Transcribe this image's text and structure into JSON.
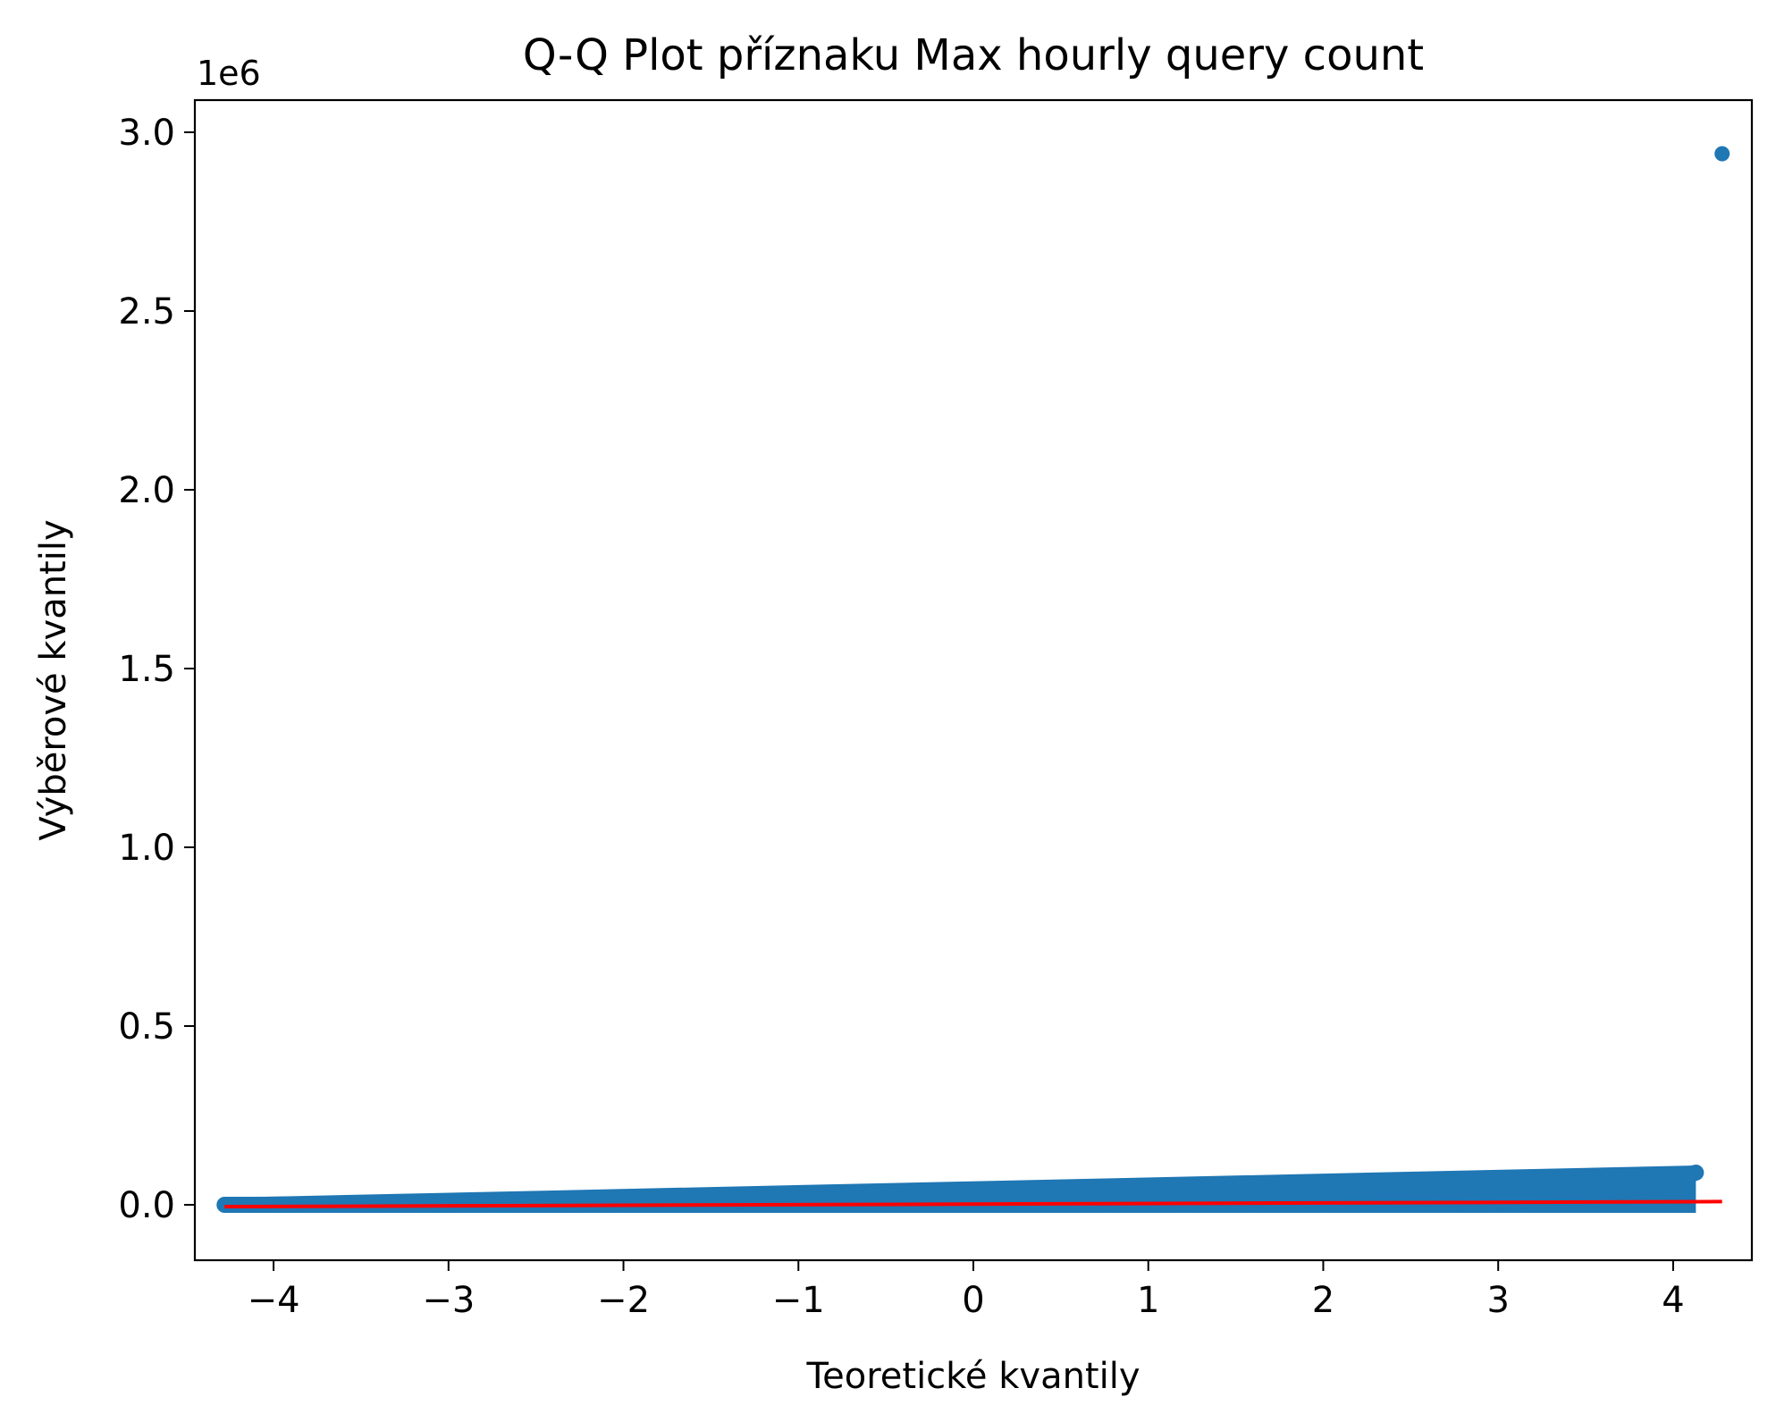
{
  "chart_data": {
    "type": "scatter",
    "title": "Q-Q Plot příznaku Max hourly query count",
    "xlabel": "Teoretické kvantily",
    "ylabel": "Výběrové kvantily",
    "y_offset_text": "1e6",
    "xlim": [
      -4.45,
      4.45
    ],
    "ylim": [
      -155000,
      3090000
    ],
    "x_ticks": [
      -4,
      -3,
      -2,
      -1,
      0,
      1,
      2,
      3,
      4
    ],
    "x_tick_labels": [
      "−4",
      "−3",
      "−2",
      "−1",
      "0",
      "1",
      "2",
      "3",
      "4"
    ],
    "y_ticks": [
      0,
      500000,
      1000000,
      1500000,
      2000000,
      2500000,
      3000000
    ],
    "y_tick_labels": [
      "0.0",
      "0.5",
      "1.0",
      "1.5",
      "2.0",
      "2.5",
      "3.0"
    ],
    "grid": false,
    "series": [
      {
        "type": "scatter",
        "color": "#1f77b4",
        "x": [
          -4.28,
          -4.11,
          -4.03,
          -3.96,
          -3.9,
          -3.84,
          -3.75,
          -3.6,
          -3.4,
          -3.1,
          -2.7,
          -2.2,
          -1.7,
          -1.2,
          -0.7,
          -0.2,
          0.3,
          0.8,
          1.2,
          1.6,
          2.0,
          2.4,
          2.8,
          3.0,
          3.2,
          3.35,
          3.5,
          3.6,
          3.68,
          3.75,
          3.8,
          3.85,
          3.9,
          3.95,
          4.03,
          4.13,
          4.28
        ],
        "y": [
          0,
          0,
          300,
          600,
          800,
          900,
          1000,
          1200,
          1400,
          1600,
          1800,
          2000,
          2200,
          2400,
          2600,
          2800,
          3000,
          3300,
          3600,
          4000,
          4500,
          5500,
          7000,
          9000,
          13000,
          18000,
          24000,
          30000,
          36000,
          44000,
          52000,
          56000,
          58000,
          66000,
          76000,
          90000,
          2940000
        ]
      },
      {
        "type": "line",
        "color": "#ff0000",
        "x": [
          -4.28,
          4.28
        ],
        "y": [
          -5000,
          9000
        ]
      }
    ]
  }
}
